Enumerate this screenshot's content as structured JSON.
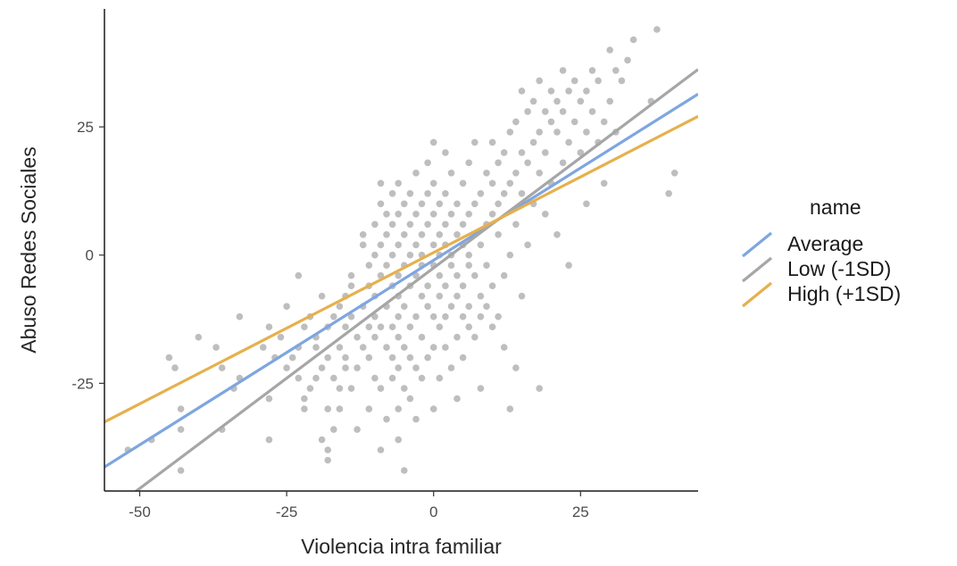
{
  "chart_data": {
    "type": "scatter",
    "title": "",
    "xlabel": "Violencia intra familiar",
    "ylabel": "Abuso Redes Sociales",
    "xlim": [
      -56,
      45
    ],
    "ylim": [
      -46,
      48
    ],
    "xticks": [
      -50,
      -25,
      0,
      25
    ],
    "yticks": [
      -25,
      0,
      25
    ],
    "xtick_labels": [
      "-50",
      "-25",
      "0",
      "25"
    ],
    "ytick_labels": [
      "-25",
      "0",
      "25"
    ],
    "grid": false,
    "legend": {
      "title": "name",
      "position": "right",
      "entries": [
        "Average",
        "Low (-1SD)",
        "High (+1SD)"
      ]
    },
    "points": [
      [
        -52,
        -38
      ],
      [
        -48,
        -36
      ],
      [
        -45,
        -20
      ],
      [
        -44,
        -22
      ],
      [
        -43,
        -30
      ],
      [
        -43,
        -34
      ],
      [
        -43,
        -42
      ],
      [
        -40,
        -16
      ],
      [
        -37,
        -18
      ],
      [
        -36,
        -22
      ],
      [
        -36,
        -34
      ],
      [
        -34,
        -26
      ],
      [
        -33,
        -24
      ],
      [
        -33,
        -12
      ],
      [
        -29,
        -18
      ],
      [
        -28,
        -28
      ],
      [
        -28,
        -36
      ],
      [
        -28,
        -14
      ],
      [
        -27,
        -20
      ],
      [
        -26,
        -16
      ],
      [
        -25,
        -22
      ],
      [
        -25,
        -10
      ],
      [
        -24,
        -20
      ],
      [
        -23,
        -24
      ],
      [
        -23,
        -18
      ],
      [
        -23,
        -4
      ],
      [
        -22,
        -14
      ],
      [
        -22,
        -28
      ],
      [
        -22,
        -30
      ],
      [
        -21,
        -12
      ],
      [
        -21,
        -26
      ],
      [
        -20,
        -16
      ],
      [
        -20,
        -18
      ],
      [
        -20,
        -24
      ],
      [
        -19,
        -8
      ],
      [
        -19,
        -22
      ],
      [
        -19,
        -36
      ],
      [
        -18,
        -14
      ],
      [
        -18,
        -20
      ],
      [
        -18,
        -30
      ],
      [
        -18,
        -38
      ],
      [
        -18,
        -40
      ],
      [
        -17,
        -12
      ],
      [
        -17,
        -24
      ],
      [
        -17,
        -34
      ],
      [
        -16,
        -10
      ],
      [
        -16,
        -18
      ],
      [
        -16,
        -26
      ],
      [
        -16,
        -30
      ],
      [
        -15,
        -8
      ],
      [
        -15,
        -14
      ],
      [
        -15,
        -20
      ],
      [
        -15,
        -22
      ],
      [
        -14,
        -4
      ],
      [
        -14,
        -6
      ],
      [
        -14,
        -12
      ],
      [
        -14,
        -26
      ],
      [
        -13,
        -16
      ],
      [
        -13,
        -22
      ],
      [
        -13,
        -34
      ],
      [
        -12,
        2
      ],
      [
        -12,
        4
      ],
      [
        -12,
        -10
      ],
      [
        -12,
        -18
      ],
      [
        -11,
        -2
      ],
      [
        -11,
        -6
      ],
      [
        -11,
        -14
      ],
      [
        -11,
        -20
      ],
      [
        -11,
        -30
      ],
      [
        -10,
        0
      ],
      [
        -10,
        6
      ],
      [
        -10,
        -8
      ],
      [
        -10,
        -12
      ],
      [
        -10,
        -16
      ],
      [
        -10,
        -24
      ],
      [
        -9,
        2
      ],
      [
        -9,
        10
      ],
      [
        -9,
        14
      ],
      [
        -9,
        -4
      ],
      [
        -9,
        -14
      ],
      [
        -9,
        -26
      ],
      [
        -9,
        -38
      ],
      [
        -8,
        4
      ],
      [
        -8,
        8
      ],
      [
        -8,
        -2
      ],
      [
        -8,
        -10
      ],
      [
        -8,
        -18
      ],
      [
        -8,
        -32
      ],
      [
        -7,
        0
      ],
      [
        -7,
        6
      ],
      [
        -7,
        12
      ],
      [
        -7,
        -6
      ],
      [
        -7,
        -14
      ],
      [
        -7,
        -20
      ],
      [
        -7,
        -24
      ],
      [
        -6,
        2
      ],
      [
        -6,
        8
      ],
      [
        -6,
        14
      ],
      [
        -6,
        -4
      ],
      [
        -6,
        -8
      ],
      [
        -6,
        -12
      ],
      [
        -6,
        -16
      ],
      [
        -6,
        -22
      ],
      [
        -6,
        -30
      ],
      [
        -6,
        -36
      ],
      [
        -5,
        4
      ],
      [
        -5,
        10
      ],
      [
        -5,
        -2
      ],
      [
        -5,
        -10
      ],
      [
        -5,
        -18
      ],
      [
        -5,
        -26
      ],
      [
        -5,
        -42
      ],
      [
        -4,
        0
      ],
      [
        -4,
        6
      ],
      [
        -4,
        12
      ],
      [
        -4,
        -6
      ],
      [
        -4,
        -14
      ],
      [
        -4,
        -20
      ],
      [
        -4,
        -28
      ],
      [
        -3,
        2
      ],
      [
        -3,
        8
      ],
      [
        -3,
        16
      ],
      [
        -3,
        -4
      ],
      [
        -3,
        -12
      ],
      [
        -3,
        -22
      ],
      [
        -3,
        -32
      ],
      [
        -2,
        0
      ],
      [
        -2,
        4
      ],
      [
        -2,
        10
      ],
      [
        -2,
        -2
      ],
      [
        -2,
        -8
      ],
      [
        -2,
        -16
      ],
      [
        -2,
        -24
      ],
      [
        -1,
        6
      ],
      [
        -1,
        12
      ],
      [
        -1,
        18
      ],
      [
        -1,
        -6
      ],
      [
        -1,
        -10
      ],
      [
        -1,
        -20
      ],
      [
        0,
        2
      ],
      [
        0,
        8
      ],
      [
        0,
        14
      ],
      [
        0,
        22
      ],
      [
        0,
        -2
      ],
      [
        0,
        -12
      ],
      [
        0,
        -18
      ],
      [
        0,
        -30
      ],
      [
        1,
        0
      ],
      [
        1,
        4
      ],
      [
        1,
        10
      ],
      [
        1,
        -4
      ],
      [
        1,
        -8
      ],
      [
        1,
        -14
      ],
      [
        1,
        -24
      ],
      [
        2,
        2
      ],
      [
        2,
        6
      ],
      [
        2,
        12
      ],
      [
        2,
        20
      ],
      [
        2,
        -6
      ],
      [
        2,
        -12
      ],
      [
        2,
        -18
      ],
      [
        3,
        0
      ],
      [
        3,
        8
      ],
      [
        3,
        16
      ],
      [
        3,
        -2
      ],
      [
        3,
        -10
      ],
      [
        3,
        -22
      ],
      [
        4,
        4
      ],
      [
        4,
        10
      ],
      [
        4,
        -4
      ],
      [
        4,
        -8
      ],
      [
        4,
        -16
      ],
      [
        4,
        -28
      ],
      [
        5,
        2
      ],
      [
        5,
        6
      ],
      [
        5,
        14
      ],
      [
        5,
        -6
      ],
      [
        5,
        -12
      ],
      [
        5,
        -20
      ],
      [
        6,
        0
      ],
      [
        6,
        8
      ],
      [
        6,
        18
      ],
      [
        6,
        -2
      ],
      [
        6,
        -10
      ],
      [
        6,
        -14
      ],
      [
        7,
        4
      ],
      [
        7,
        10
      ],
      [
        7,
        22
      ],
      [
        7,
        -4
      ],
      [
        7,
        -16
      ],
      [
        8,
        2
      ],
      [
        8,
        12
      ],
      [
        8,
        -8
      ],
      [
        8,
        -12
      ],
      [
        8,
        -26
      ],
      [
        9,
        6
      ],
      [
        9,
        16
      ],
      [
        9,
        -2
      ],
      [
        9,
        -10
      ],
      [
        10,
        8
      ],
      [
        10,
        14
      ],
      [
        10,
        22
      ],
      [
        10,
        -6
      ],
      [
        10,
        -14
      ],
      [
        11,
        10
      ],
      [
        11,
        18
      ],
      [
        11,
        4
      ],
      [
        11,
        -12
      ],
      [
        12,
        12
      ],
      [
        12,
        20
      ],
      [
        12,
        -4
      ],
      [
        12,
        -18
      ],
      [
        13,
        14
      ],
      [
        13,
        24
      ],
      [
        13,
        0
      ],
      [
        13,
        -30
      ],
      [
        14,
        16
      ],
      [
        14,
        26
      ],
      [
        14,
        6
      ],
      [
        14,
        -22
      ],
      [
        15,
        12
      ],
      [
        15,
        20
      ],
      [
        15,
        32
      ],
      [
        15,
        -8
      ],
      [
        16,
        18
      ],
      [
        16,
        28
      ],
      [
        16,
        2
      ],
      [
        17,
        22
      ],
      [
        17,
        30
      ],
      [
        17,
        10
      ],
      [
        18,
        24
      ],
      [
        18,
        34
      ],
      [
        18,
        16
      ],
      [
        18,
        -26
      ],
      [
        19,
        20
      ],
      [
        19,
        28
      ],
      [
        19,
        8
      ],
      [
        20,
        26
      ],
      [
        20,
        32
      ],
      [
        20,
        14
      ],
      [
        21,
        24
      ],
      [
        21,
        30
      ],
      [
        21,
        4
      ],
      [
        22,
        28
      ],
      [
        22,
        36
      ],
      [
        22,
        18
      ],
      [
        23,
        22
      ],
      [
        23,
        32
      ],
      [
        23,
        -2
      ],
      [
        24,
        26
      ],
      [
        24,
        34
      ],
      [
        25,
        20
      ],
      [
        25,
        30
      ],
      [
        26,
        24
      ],
      [
        26,
        32
      ],
      [
        26,
        10
      ],
      [
        27,
        28
      ],
      [
        27,
        36
      ],
      [
        28,
        22
      ],
      [
        28,
        34
      ],
      [
        29,
        26
      ],
      [
        29,
        14
      ],
      [
        30,
        30
      ],
      [
        30,
        40
      ],
      [
        31,
        24
      ],
      [
        31,
        36
      ],
      [
        32,
        34
      ],
      [
        33,
        38
      ],
      [
        34,
        42
      ],
      [
        37,
        30
      ],
      [
        38,
        44
      ],
      [
        40,
        12
      ],
      [
        41,
        16
      ]
    ],
    "series": [
      {
        "name": "Average",
        "color": "#7ea6e0",
        "intercept": -1.0,
        "slope": 0.72
      },
      {
        "name": "Low (-1SD)",
        "color": "#a6a6a6",
        "intercept": -2.5,
        "slope": 0.86
      },
      {
        "name": "High (+1SD)",
        "color": "#e6b04d",
        "intercept": 0.5,
        "slope": 0.59
      }
    ]
  }
}
